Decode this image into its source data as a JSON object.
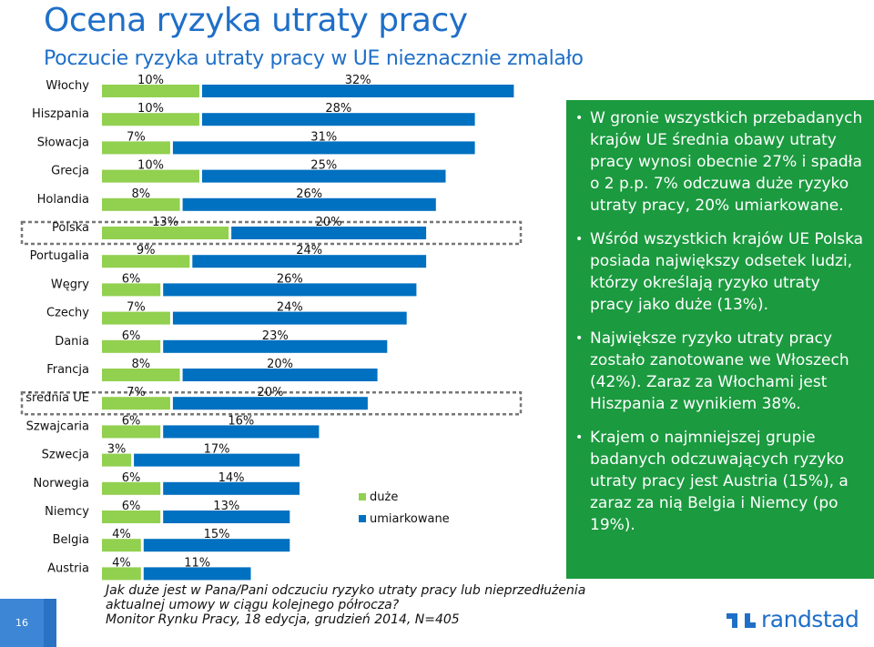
{
  "header": {
    "title": "Ocena ryzyka utraty pracy",
    "subtitle": "Poczucie ryzyka utraty pracy w UE nieznacznie zmalało"
  },
  "chart_data": {
    "type": "bar",
    "stacked": true,
    "orientation": "horizontal",
    "categories": [
      "Włochy",
      "Hiszpania",
      "Słowacja",
      "Grecja",
      "Holandia",
      "Polska",
      "Portugalia",
      "Węgry",
      "Czechy",
      "Dania",
      "Francja",
      "średnia UE",
      "Szwajcaria",
      "Szwecja",
      "Norwegia",
      "Niemcy",
      "Belgia",
      "Austria"
    ],
    "series": [
      {
        "name": "duże",
        "color": "#92d050",
        "values": [
          10,
          10,
          7,
          10,
          8,
          13,
          9,
          6,
          7,
          6,
          8,
          7,
          6,
          3,
          6,
          6,
          4,
          4
        ]
      },
      {
        "name": "umiarkowane",
        "color": "#0070c0",
        "values": [
          32,
          28,
          31,
          25,
          26,
          20,
          24,
          26,
          24,
          23,
          20,
          20,
          16,
          17,
          14,
          13,
          15,
          11
        ]
      }
    ],
    "value_labels": {
      "duze": [
        "10%",
        "10%",
        "7%",
        "10%",
        "8%",
        "13%",
        "9%",
        "6%",
        "7%",
        "6%",
        "8%",
        "7%",
        "6%",
        "3%",
        "6%",
        "6%",
        "4%",
        "4%"
      ],
      "umiarkowane": [
        "32%",
        "28%",
        "31%",
        "25%",
        "26%",
        "20%",
        "24%",
        "26%",
        "24%",
        "23%",
        "20%",
        "20%",
        "16%",
        "17%",
        "14%",
        "13%",
        "15%",
        "11%"
      ]
    },
    "highlighted_categories": [
      "Polska",
      "średnia UE"
    ],
    "legend": {
      "placement": "bottom-right",
      "items": [
        "duże",
        "umiarkowane"
      ]
    }
  },
  "bullets": [
    "W gronie wszystkich przebadanych krajów UE średnia obawy utraty pracy wynosi obecnie 27% i spadła o 2 p.p. 7% odczuwa duże ryzyko utraty pracy, 20% umiarkowane.",
    "Wśród wszystkich krajów UE Polska posiada największy odsetek ludzi, którzy określają ryzyko utraty pracy jako duże (13%).",
    "Największe ryzyko utraty pracy zostało zanotowane we Włoszech (42%). Zaraz za Włochami jest Hiszpania z wynikiem 38%.",
    "Krajem o najmniejszej grupie badanych odczuwających ryzyko utraty pracy jest Austria (15%), a zaraz za nią Belgia i Niemcy (po 19%)."
  ],
  "footnote": {
    "line1": "Jak duże jest w Pana/Pani odczuciu ryzyko utraty pracy lub nieprzedłużenia",
    "line2": "aktualnej umowy w ciągu kolejnego półrocza?",
    "line3": "Monitor Rynku Pracy, 18 edycja, grudzień 2014, N=405"
  },
  "page_number": "16",
  "logo": {
    "name": "randstad-logo",
    "text": "randstad",
    "color": "#1f6fc8"
  },
  "colors": {
    "accent_blue": "#1f6fc8",
    "panel_green": "#1b9a3f"
  }
}
